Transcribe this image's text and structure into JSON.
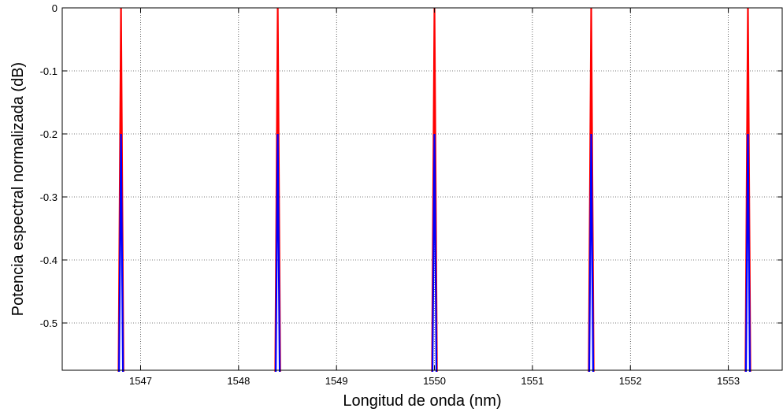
{
  "chart_data": {
    "type": "line",
    "title": "",
    "xlabel": "Longitud de onda (nm)",
    "ylabel": "Potencia espectral normalizada (dB)",
    "xlim": [
      1546.2,
      1553.55
    ],
    "ylim": [
      -0.575,
      0.0
    ],
    "xticks": [
      1547,
      1548,
      1549,
      1550,
      1551,
      1552,
      1553
    ],
    "yticks": [
      0,
      -0.1,
      -0.2,
      -0.3,
      -0.4,
      -0.5
    ],
    "xtick_labels": [
      "1547",
      "1548",
      "1549",
      "1550",
      "1551",
      "1552",
      "1553"
    ],
    "ytick_labels": [
      "0",
      "-0.1",
      "-0.2",
      "-0.3",
      "-0.4",
      "-0.5"
    ],
    "grid": true,
    "legend": false,
    "series": [
      {
        "color": "#ff0000",
        "peaks_x": [
          1546.8,
          1548.4,
          1550.0,
          1551.6,
          1553.2
        ],
        "peak_y": 0.0,
        "half_width": 0.025
      },
      {
        "color": "#0000ff",
        "peaks_x": [
          1546.8,
          1548.4,
          1550.0,
          1551.6,
          1553.2
        ],
        "peak_y": -0.2,
        "half_width": 0.02
      }
    ]
  }
}
